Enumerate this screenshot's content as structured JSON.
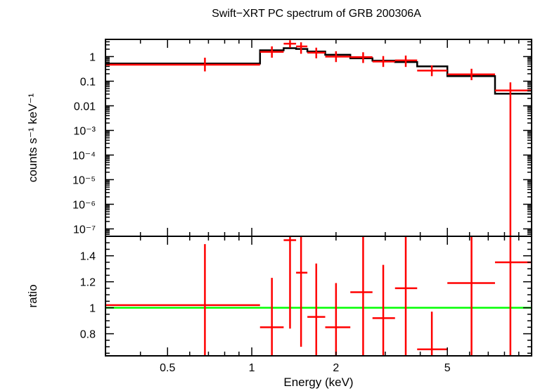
{
  "chart_data": [
    {
      "type": "line",
      "title": "Swift−XRT PC spectrum of GRB 200306A",
      "xlabel": "",
      "ylabel": "counts s⁻¹ keV⁻¹",
      "xscale": "log",
      "yscale": "log",
      "xlim": [
        0.3,
        10
      ],
      "ylim": [
        5e-08,
        5
      ],
      "yticks": [
        {
          "value": 1,
          "label": "1"
        },
        {
          "value": 0.1,
          "label": "0.1"
        },
        {
          "value": 0.01,
          "label": "0.01"
        },
        {
          "value": 0.001,
          "label": "10⁻³"
        },
        {
          "value": 0.0001,
          "label": "10⁻⁴"
        },
        {
          "value": 1e-05,
          "label": "10⁻⁵"
        },
        {
          "value": 1e-06,
          "label": "10⁻⁶"
        },
        {
          "value": 1e-07,
          "label": "10⁻⁷"
        }
      ],
      "series": [
        {
          "kind": "data",
          "color": "#ff0000",
          "points": [
            {
              "x": 0.68,
              "xlo": 0.3,
              "xhi": 1.07,
              "y": 0.47,
              "ylo": 0.25,
              "yhi": 0.9
            },
            {
              "x": 1.18,
              "xlo": 1.07,
              "xhi": 1.3,
              "y": 1.55,
              "ylo": 0.9,
              "yhi": 2.6
            },
            {
              "x": 1.37,
              "xlo": 1.3,
              "xhi": 1.44,
              "y": 3.35,
              "ylo": 2.3,
              "yhi": 4.6
            },
            {
              "x": 1.5,
              "xlo": 1.44,
              "xhi": 1.58,
              "y": 2.6,
              "ylo": 1.3,
              "yhi": 3.8
            },
            {
              "x": 1.7,
              "xlo": 1.58,
              "xhi": 1.83,
              "y": 1.45,
              "ylo": 0.85,
              "yhi": 2.3
            },
            {
              "x": 2.0,
              "xlo": 1.83,
              "xhi": 2.25,
              "y": 1.0,
              "ylo": 0.6,
              "yhi": 1.65
            },
            {
              "x": 2.5,
              "xlo": 2.25,
              "xhi": 2.7,
              "y": 0.95,
              "ylo": 0.55,
              "yhi": 1.5
            },
            {
              "x": 2.95,
              "xlo": 2.7,
              "xhi": 3.25,
              "y": 0.63,
              "ylo": 0.38,
              "yhi": 1.05
            },
            {
              "x": 3.55,
              "xlo": 3.25,
              "xhi": 3.9,
              "y": 0.7,
              "ylo": 0.38,
              "yhi": 1.1
            },
            {
              "x": 4.4,
              "xlo": 3.9,
              "xhi": 5.0,
              "y": 0.27,
              "ylo": 0.16,
              "yhi": 0.44
            },
            {
              "x": 6.1,
              "xlo": 5.0,
              "xhi": 7.4,
              "y": 0.19,
              "ylo": 0.11,
              "yhi": 0.32
            },
            {
              "x": 8.4,
              "xlo": 7.4,
              "xhi": 10,
              "y": 0.042,
              "ylo": 5e-08,
              "yhi": 0.09
            }
          ]
        },
        {
          "kind": "model",
          "color": "#000000",
          "steps": [
            {
              "x0": 0.3,
              "x1": 1.07,
              "y": 0.52
            },
            {
              "x0": 1.07,
              "x1": 1.3,
              "y": 1.8
            },
            {
              "x0": 1.3,
              "x1": 1.44,
              "y": 2.2
            },
            {
              "x0": 1.44,
              "x1": 1.58,
              "y": 2.05
            },
            {
              "x0": 1.58,
              "x1": 1.83,
              "y": 1.6
            },
            {
              "x0": 1.83,
              "x1": 2.25,
              "y": 1.18
            },
            {
              "x0": 2.25,
              "x1": 2.7,
              "y": 0.85
            },
            {
              "x0": 2.7,
              "x1": 3.25,
              "y": 0.68
            },
            {
              "x0": 3.25,
              "x1": 3.9,
              "y": 0.6
            },
            {
              "x0": 3.9,
              "x1": 5.0,
              "y": 0.4
            },
            {
              "x0": 5.0,
              "x1": 7.4,
              "y": 0.16
            },
            {
              "x0": 7.4,
              "x1": 10,
              "y": 0.031
            }
          ]
        }
      ]
    },
    {
      "type": "line",
      "title": "",
      "xlabel": "Energy (keV)",
      "ylabel": "ratio",
      "xscale": "log",
      "yscale": "linear",
      "xlim": [
        0.3,
        10
      ],
      "ylim": [
        0.63,
        1.55
      ],
      "xticks": [
        {
          "value": 0.5,
          "label": "0.5"
        },
        {
          "value": 1,
          "label": "1"
        },
        {
          "value": 2,
          "label": "2"
        },
        {
          "value": 5,
          "label": "5"
        }
      ],
      "yticks": [
        {
          "value": 0.8,
          "label": "0.8"
        },
        {
          "value": 1,
          "label": "1"
        },
        {
          "value": 1.2,
          "label": "1.2"
        },
        {
          "value": 1.4,
          "label": "1.4"
        }
      ],
      "series": [
        {
          "kind": "data",
          "color": "#ff0000",
          "points": [
            {
              "x": 0.68,
              "xlo": 0.3,
              "xhi": 1.07,
              "y": 1.02,
              "ylo": 0.63,
              "yhi": 1.49
            },
            {
              "x": 1.18,
              "xlo": 1.07,
              "xhi": 1.3,
              "y": 0.85,
              "ylo": 0.63,
              "yhi": 1.23
            },
            {
              "x": 1.37,
              "xlo": 1.3,
              "xhi": 1.44,
              "y": 1.52,
              "ylo": 0.84,
              "yhi": 1.55
            },
            {
              "x": 1.5,
              "xlo": 1.44,
              "xhi": 1.58,
              "y": 1.27,
              "ylo": 0.7,
              "yhi": 1.55
            },
            {
              "x": 1.7,
              "xlo": 1.58,
              "xhi": 1.83,
              "y": 0.93,
              "ylo": 0.63,
              "yhi": 1.34
            },
            {
              "x": 2.0,
              "xlo": 1.83,
              "xhi": 2.25,
              "y": 0.85,
              "ylo": 0.63,
              "yhi": 1.19
            },
            {
              "x": 2.5,
              "xlo": 2.25,
              "xhi": 2.7,
              "y": 1.12,
              "ylo": 0.63,
              "yhi": 1.55
            },
            {
              "x": 2.95,
              "xlo": 2.7,
              "xhi": 3.25,
              "y": 0.92,
              "ylo": 0.63,
              "yhi": 1.33
            },
            {
              "x": 3.55,
              "xlo": 3.25,
              "xhi": 3.9,
              "y": 1.15,
              "ylo": 0.63,
              "yhi": 1.55
            },
            {
              "x": 4.4,
              "xlo": 3.9,
              "xhi": 5.0,
              "y": 0.68,
              "ylo": 0.63,
              "yhi": 0.97
            },
            {
              "x": 6.1,
              "xlo": 5.0,
              "xhi": 7.4,
              "y": 1.19,
              "ylo": 0.63,
              "yhi": 1.55
            },
            {
              "x": 8.4,
              "xlo": 7.4,
              "xhi": 10,
              "y": 1.35,
              "ylo": 0.63,
              "yhi": 1.55
            }
          ]
        },
        {
          "kind": "reference",
          "color": "#00ff00",
          "y": 1
        }
      ]
    }
  ]
}
